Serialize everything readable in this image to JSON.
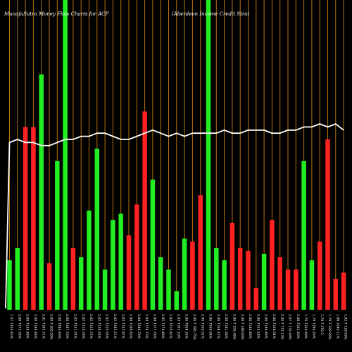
{
  "chart_data": {
    "type": "bar",
    "title_left": "MunafaSutra  Money Flow  Charts for ACP",
    "title_right": "(Aberdeen Income  Credit Strat",
    "colors": {
      "background": "#000000",
      "up": "#22ee22",
      "down": "#ff2222",
      "grid": "#b8740c",
      "line": "#ffffff"
    },
    "ylim": [
      0,
      100
    ],
    "categories": [
      "1.57 7326.43%",
      "2.00 7173.39%",
      "2.00 7139.49%",
      "2.00 7198.48%",
      "2.01 7192.71%",
      "2.00 7 200.29%",
      "2.00 7286.40%",
      "2.00 7187.76%",
      "2.02 7151.74%",
      "2.02 7116.78%",
      "2.02 7125.75%",
      "2.02 7128.24%",
      "2.02 7129.93%",
      "2.02 7185.21%",
      "2.03 7153.87%",
      "2.04 7198.83%",
      "2.04 7246.79%",
      "2.04 7176.73%",
      "2.04 7177.78%",
      "2.05 7176.48%",
      "2.04 7210.42%",
      "2.03 7181.10%",
      "2.06 7268.33%",
      "2.06 7 186.75%",
      "2.06 7166.52%",
      "2.06 7268.06%",
      "2.06 7168.22%",
      "2.06 7141.36%",
      "2.06 7 155.46%",
      "2.06 7 148.00%",
      "2.06 7144.80%",
      "2.06 7155.18%",
      "2.06 7146.49%",
      "2.06 7128.54%",
      "2.05 7 172.13%",
      "2.07 7 132.44%",
      "2.08 7162.20%",
      "1.79 7164.90%",
      "1.79 7186.26%",
      "1.79 7 270.3",
      "1.79 7 229.99%",
      "1.88 7240.11%",
      "1.92 7 118.99%"
    ],
    "values": [
      16,
      20,
      0,
      0,
      0,
      15,
      0,
      0,
      0,
      17,
      13,
      0,
      0,
      18,
      0,
      0,
      0,
      0,
      0,
      19,
      0,
      7,
      0,
      19,
      0,
      0,
      19,
      0,
      22,
      0,
      15,
      20,
      0,
      0,
      16,
      0,
      0,
      12,
      12,
      0,
      0,
      0,
      0
    ],
    "series": [
      {
        "type": "bar",
        "direction": [
          "up",
          "up",
          "down",
          "down",
          "up",
          "down",
          "up",
          "up",
          "down",
          "up",
          "up",
          "up",
          "up",
          "up",
          "up",
          "down",
          "down",
          "down",
          "up",
          "up",
          "up",
          "up",
          "up",
          "down",
          "down",
          "up",
          "up",
          "up",
          "down",
          "down",
          "down",
          "down",
          "up",
          "down",
          "down",
          "down",
          "down",
          "up",
          "up",
          "down",
          "down",
          "down",
          "down"
        ],
        "values": [
          16,
          20,
          59,
          59,
          76,
          15,
          48,
          100,
          20,
          17,
          32,
          52,
          13,
          29,
          31,
          24,
          34,
          64,
          42,
          17,
          13,
          6,
          23,
          22,
          37,
          100,
          20,
          16,
          28,
          20,
          19,
          7,
          18,
          29,
          17,
          13,
          13,
          48,
          16,
          22,
          55,
          10,
          12
        ]
      },
      {
        "type": "line",
        "values": [
          54,
          55,
          54,
          54,
          53,
          53,
          54,
          55,
          55,
          56,
          56,
          57,
          57,
          56,
          55,
          55,
          56,
          57,
          58,
          57,
          56,
          57,
          56,
          57,
          57,
          57,
          57,
          58,
          57,
          57,
          58,
          58,
          58,
          57,
          57,
          58,
          58,
          59,
          59,
          60,
          59,
          60,
          58
        ]
      }
    ]
  }
}
